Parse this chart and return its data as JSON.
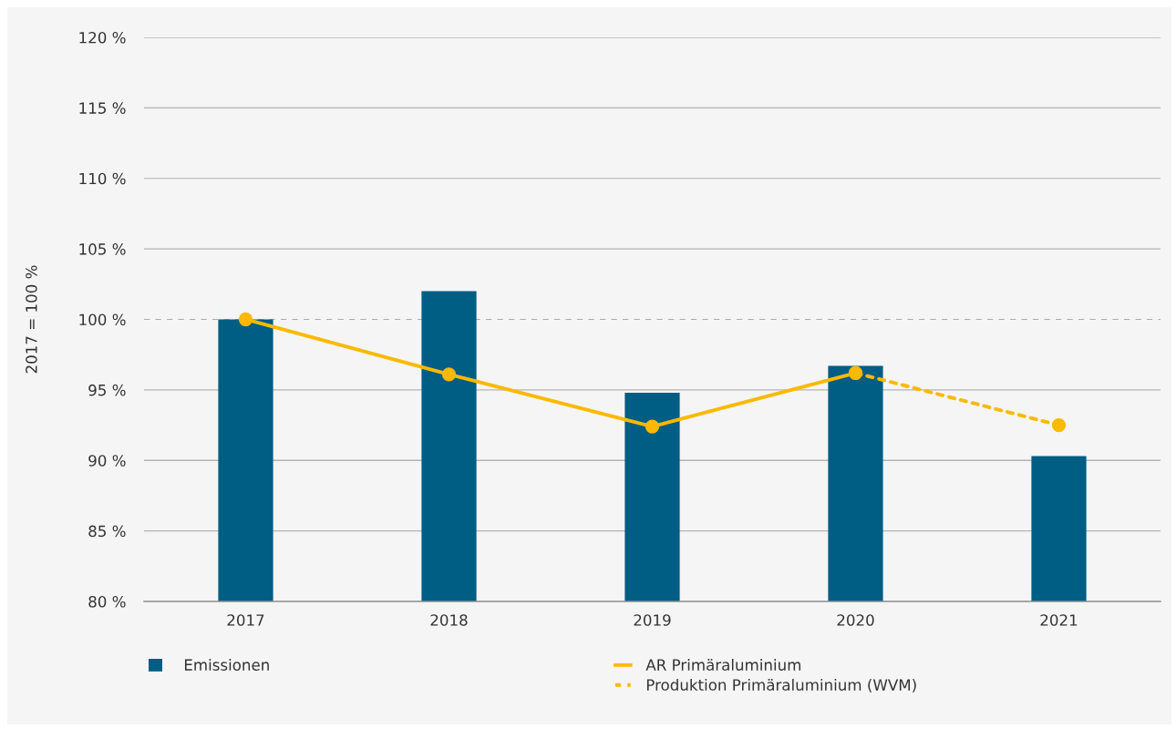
{
  "chart_data": {
    "type": "bar",
    "categories": [
      "2017",
      "2018",
      "2019",
      "2020",
      "2021"
    ],
    "series": [
      {
        "name": "Emissionen",
        "color": "#005d84",
        "values": [
          100,
          102.0,
          94.8,
          96.7,
          90.3
        ]
      },
      {
        "name": "AR Primäraluminium",
        "type": "line",
        "color": "#fbb900",
        "line_style": "solid",
        "values": [
          100,
          96.1,
          92.4,
          96.2,
          null
        ]
      },
      {
        "name": "Produktion Primäraluminium (WVM)",
        "type": "line",
        "color": "#fbb900",
        "line_style": "dashed",
        "values": [
          null,
          null,
          null,
          96.2,
          92.5
        ]
      }
    ],
    "ylabel": "2017 = 100 %",
    "ylim": [
      80,
      120
    ],
    "yticks": [
      {
        "value": 80,
        "label": "80 %"
      },
      {
        "value": 85,
        "label": "85 %"
      },
      {
        "value": 90,
        "label": "90 %"
      },
      {
        "value": 95,
        "label": "95 %"
      },
      {
        "value": 100,
        "label": "100 %"
      },
      {
        "value": 105,
        "label": "105 %"
      },
      {
        "value": 110,
        "label": "110 %"
      },
      {
        "value": 115,
        "label": "115 %"
      },
      {
        "value": 120,
        "label": "120 %"
      }
    ],
    "ref_lines": [
      {
        "axis": "y",
        "value": 100,
        "color": "#aaaaaa",
        "line_style": "dashed"
      }
    ],
    "grid": "y",
    "legend": "bottom",
    "marker": "circle"
  }
}
